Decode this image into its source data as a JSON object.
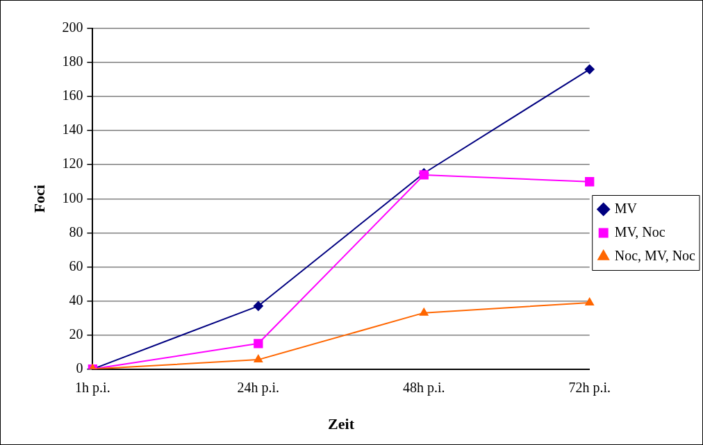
{
  "chart_data": {
    "type": "line",
    "xlabel": "Zeit",
    "ylabel": "Foci",
    "categories": [
      "1h p.i.",
      "24h p.i.",
      "48h p.i.",
      "72h p.i."
    ],
    "series": [
      {
        "name": "MV",
        "color": "#000080",
        "marker": "diamond",
        "values": [
          0,
          37,
          115,
          176
        ]
      },
      {
        "name": "MV, Noc",
        "color": "#ff00ff",
        "marker": "square",
        "values": [
          0,
          15,
          114,
          110
        ]
      },
      {
        "name": "Noc, MV, Noc",
        "color": "#ff6600",
        "marker": "triangle",
        "values": [
          0,
          5.5,
          33,
          39
        ]
      }
    ],
    "ylim": [
      0,
      200
    ],
    "yticks": [
      0,
      20,
      40,
      60,
      80,
      100,
      120,
      140,
      160,
      180,
      200
    ],
    "grid": "y",
    "legend": "right",
    "line_style": "solid"
  }
}
